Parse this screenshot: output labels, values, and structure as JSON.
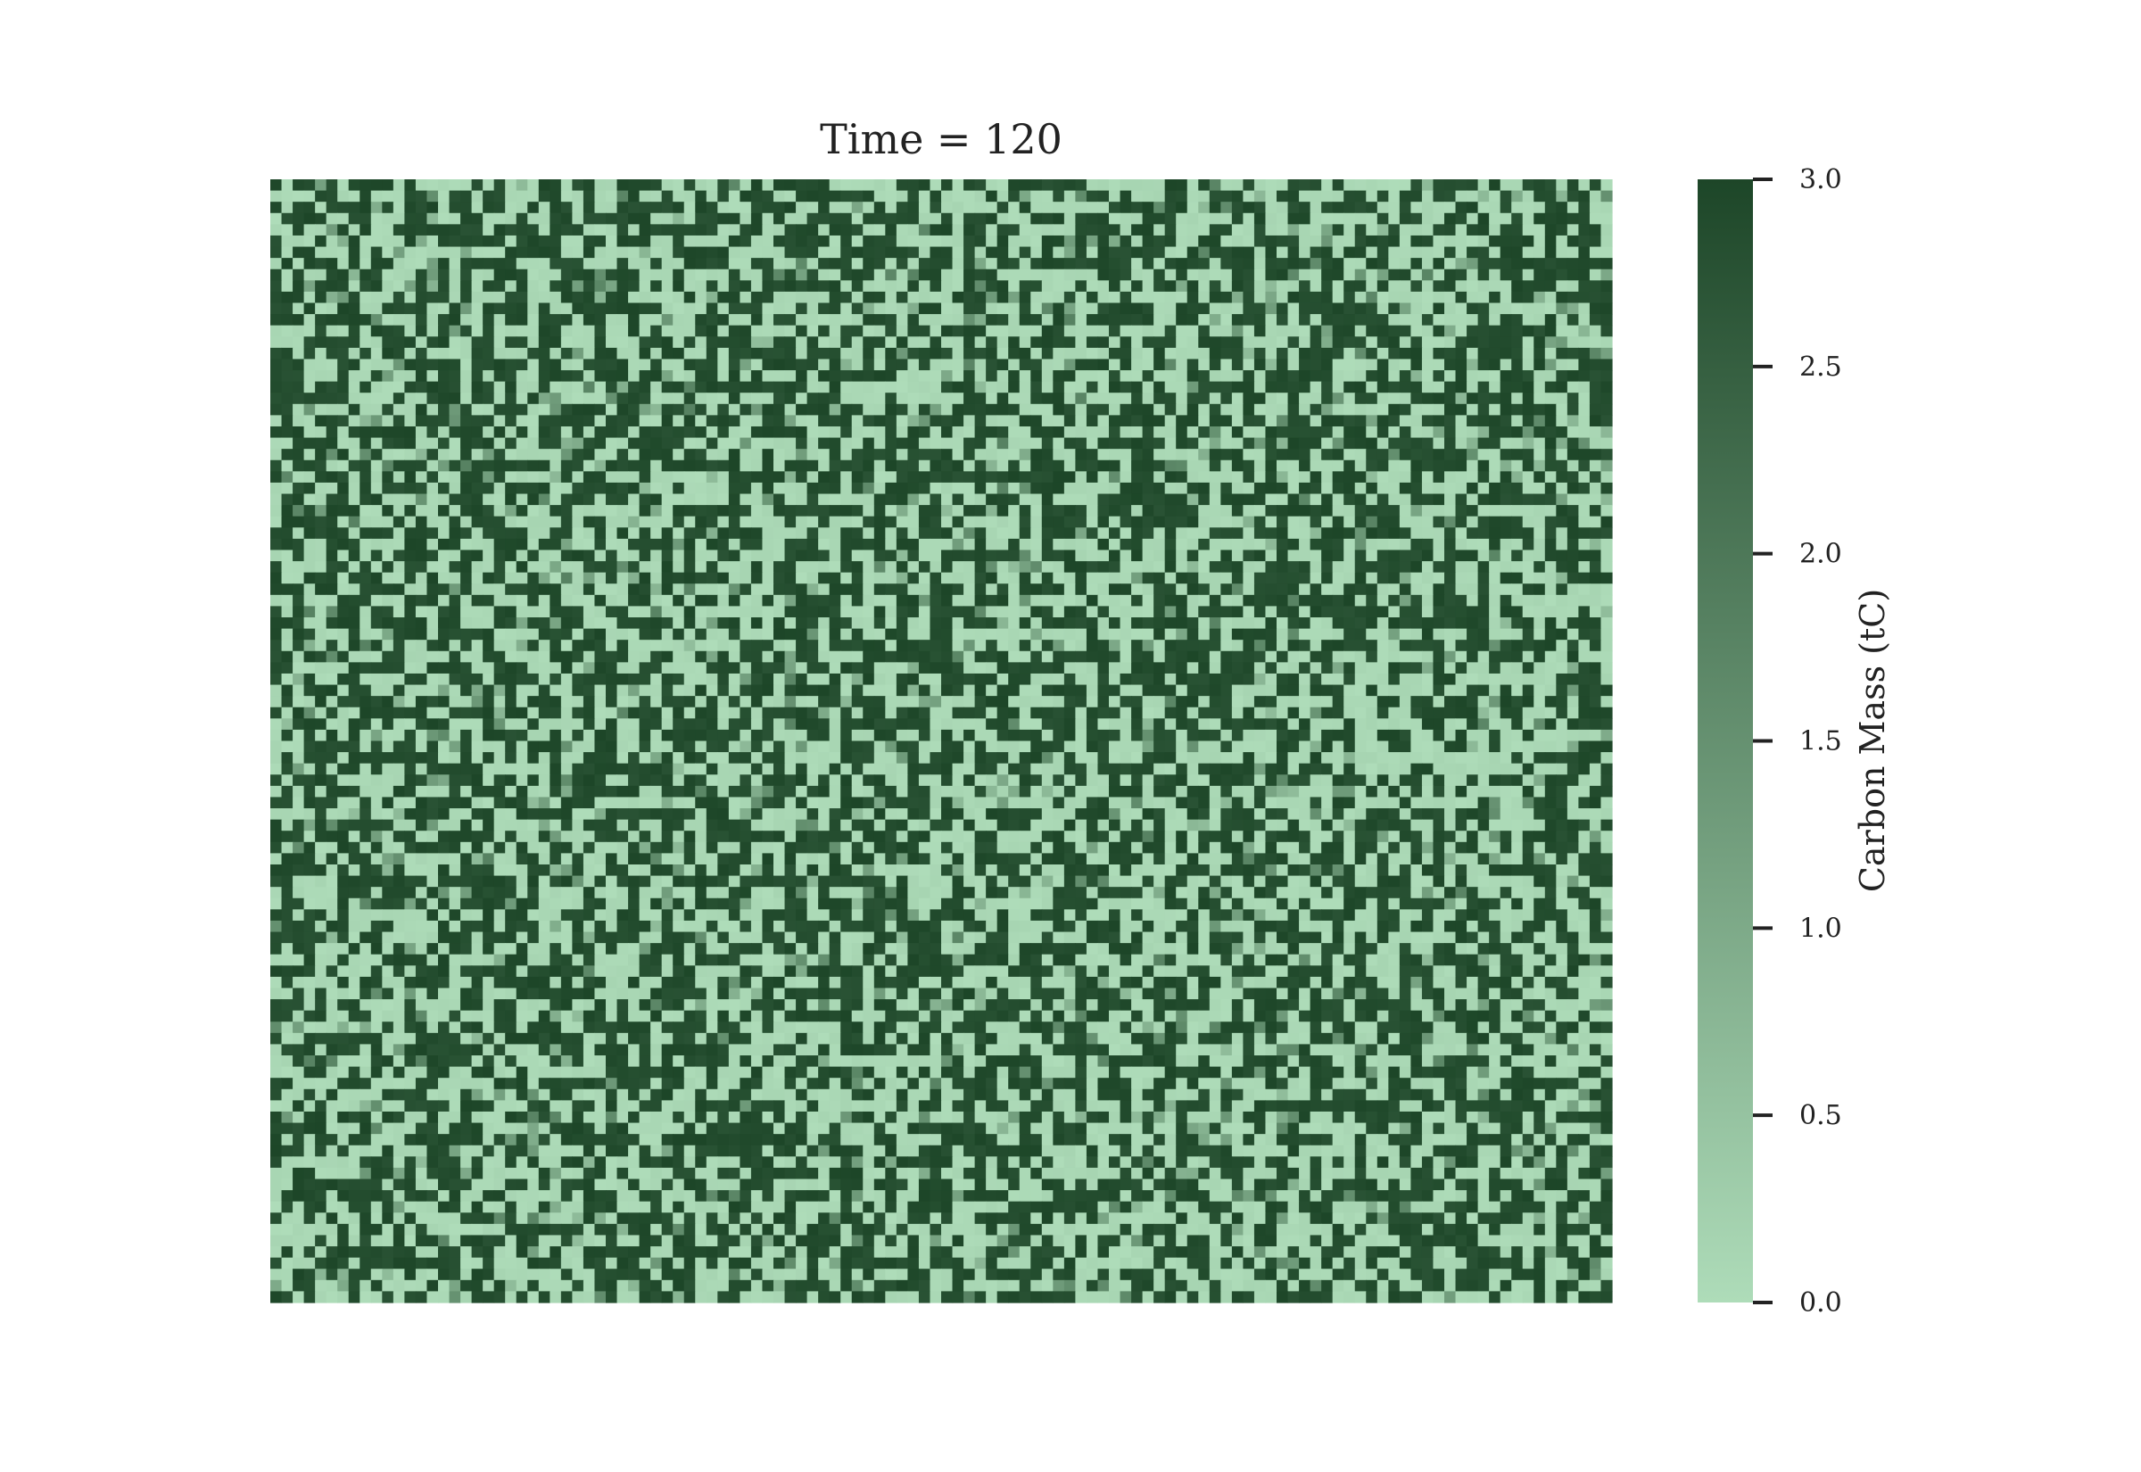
{
  "chart_data": {
    "type": "heatmap",
    "title": "Time = 120",
    "grid_shape": [
      100,
      120
    ],
    "generation": {
      "method": "seeded-random-binary-field",
      "seed": 120,
      "fraction_high": 0.5
    },
    "value_range": [
      0.0,
      3.0
    ],
    "colorbar": {
      "label": "Carbon Mass (tC)",
      "ticks": [
        0.0,
        0.5,
        1.0,
        1.5,
        2.0,
        2.5,
        3.0
      ],
      "tick_labels": [
        "0.0",
        "0.5",
        "1.0",
        "1.5",
        "2.0",
        "2.5",
        "3.0"
      ],
      "colormap": [
        "#aedcb9",
        "#1d4628"
      ]
    },
    "xticks": [],
    "yticks": [],
    "grid": false
  }
}
